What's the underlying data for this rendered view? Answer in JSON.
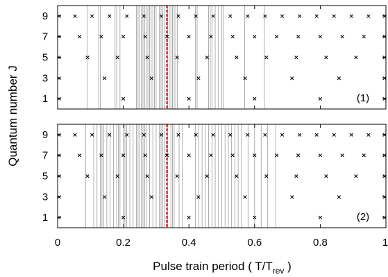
{
  "chart_data": [
    {
      "type": "scatter",
      "panel_label": "(1)",
      "xlim": [
        0,
        1
      ],
      "ylim": [
        0,
        10
      ],
      "yticks": [
        1,
        3,
        5,
        7,
        9
      ],
      "markers": [
        {
          "J": 1,
          "x": [
            0,
            0.2,
            0.4,
            0.6,
            0.8,
            1
          ]
        },
        {
          "J": 3,
          "x": [
            0,
            0.143,
            0.286,
            0.429,
            0.571,
            0.714,
            0.857,
            1
          ]
        },
        {
          "J": 5,
          "x": [
            0,
            0.091,
            0.182,
            0.273,
            0.364,
            0.455,
            0.545,
            0.636,
            0.727,
            0.818,
            0.909,
            1
          ]
        },
        {
          "J": 7,
          "x": [
            0,
            0.067,
            0.133,
            0.2,
            0.267,
            0.333,
            0.4,
            0.467,
            0.533,
            0.6,
            0.667,
            0.733,
            0.8,
            0.867,
            0.933,
            1
          ]
        },
        {
          "J": 9,
          "x": [
            0,
            0.053,
            0.105,
            0.158,
            0.211,
            0.263,
            0.316,
            0.368,
            0.421,
            0.474,
            0.526,
            0.579,
            0.632,
            0.684,
            0.737,
            0.789,
            0.842,
            0.895,
            0.947,
            1
          ]
        }
      ],
      "gray_lines": [
        0.09,
        0.125,
        0.13,
        0.175,
        0.18,
        0.19,
        0.24,
        0.245,
        0.25,
        0.255,
        0.26,
        0.265,
        0.27,
        0.275,
        0.28,
        0.285,
        0.29,
        0.295,
        0.3,
        0.31,
        0.315,
        0.32,
        0.325,
        0.335,
        0.34,
        0.345,
        0.35,
        0.355,
        0.36,
        0.365,
        0.42,
        0.425,
        0.46,
        0.465,
        0.47,
        0.48,
        0.49,
        0.5,
        0.505,
        0.57,
        0.63
      ],
      "red_line_x": 0.333
    },
    {
      "type": "scatter",
      "panel_label": "(2)",
      "xlim": [
        0,
        1
      ],
      "ylim": [
        0,
        10
      ],
      "yticks": [
        1,
        3,
        5,
        7,
        9
      ],
      "markers": [
        {
          "J": 1,
          "x": [
            0,
            0.2,
            0.4,
            0.6,
            0.8,
            1
          ]
        },
        {
          "J": 3,
          "x": [
            0,
            0.143,
            0.286,
            0.429,
            0.571,
            0.714,
            0.857,
            1
          ]
        },
        {
          "J": 5,
          "x": [
            0,
            0.091,
            0.182,
            0.273,
            0.364,
            0.455,
            0.545,
            0.636,
            0.727,
            0.818,
            0.909,
            1
          ]
        },
        {
          "J": 7,
          "x": [
            0,
            0.067,
            0.133,
            0.2,
            0.267,
            0.333,
            0.4,
            0.467,
            0.533,
            0.6,
            0.667,
            0.733,
            0.8,
            0.867,
            0.933,
            1
          ]
        },
        {
          "J": 9,
          "x": [
            0,
            0.053,
            0.105,
            0.158,
            0.211,
            0.263,
            0.316,
            0.368,
            0.421,
            0.474,
            0.526,
            0.579,
            0.632,
            0.684,
            0.737,
            0.789,
            0.842,
            0.895,
            0.947,
            1
          ]
        }
      ],
      "gray_lines": [
        0.085,
        0.11,
        0.12,
        0.13,
        0.135,
        0.14,
        0.15,
        0.16,
        0.17,
        0.18,
        0.185,
        0.19,
        0.2,
        0.205,
        0.21,
        0.22,
        0.23,
        0.24,
        0.245,
        0.25,
        0.255,
        0.26,
        0.265,
        0.27,
        0.28,
        0.29,
        0.3,
        0.31,
        0.315,
        0.32,
        0.325,
        0.335,
        0.345,
        0.35,
        0.355,
        0.37,
        0.38,
        0.42,
        0.43,
        0.44,
        0.45,
        0.46,
        0.47,
        0.48,
        0.49,
        0.5,
        0.51,
        0.52,
        0.53,
        0.54,
        0.55,
        0.56,
        0.58,
        0.6,
        0.62,
        0.64,
        0.665
      ],
      "red_line_x": 0.333
    }
  ],
  "axes": {
    "ylabel": "Quantum number J",
    "xlabel_main": "Pulse train period   ( T/T",
    "xlabel_sub": "rev",
    "xlabel_end": " )",
    "xtick_labels": [
      "0",
      "0.2",
      "0.4",
      "0.6",
      "0.8",
      "1"
    ],
    "ytick_labels": [
      "1",
      "3",
      "5",
      "7",
      "9"
    ]
  },
  "colors": {
    "gray_line": "#9a9a9a",
    "red_line": "#d40000",
    "marker": "#000000",
    "frame": "#000000"
  }
}
